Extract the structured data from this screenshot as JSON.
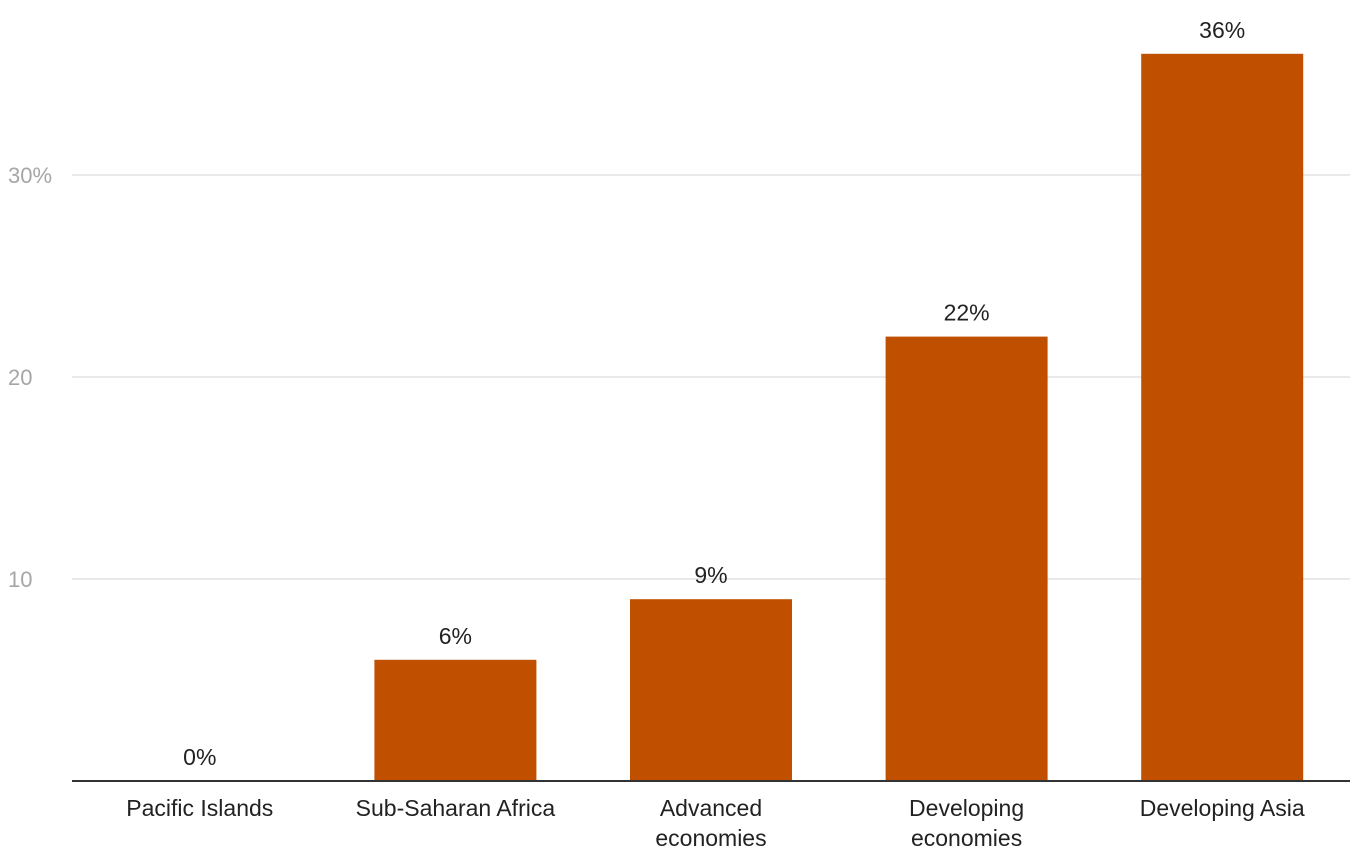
{
  "chart_data": {
    "type": "bar",
    "categories": [
      [
        "Pacific Islands"
      ],
      [
        "Sub-Saharan Africa"
      ],
      [
        "Advanced",
        "economies"
      ],
      [
        "Developing",
        "economies"
      ],
      [
        "Developing Asia"
      ]
    ],
    "values": [
      0,
      6,
      9,
      22,
      36
    ],
    "data_labels": [
      "0%",
      "6%",
      "9%",
      "22%",
      "36%"
    ],
    "title": "",
    "xlabel": "",
    "ylabel": "",
    "ylim": [
      0,
      36
    ],
    "yticks": [
      {
        "value": 10,
        "label": "10"
      },
      {
        "value": 20,
        "label": "20"
      },
      {
        "value": 30,
        "label": "30%"
      }
    ],
    "grid": true,
    "legend": "none",
    "bar_color": "#c05000"
  }
}
